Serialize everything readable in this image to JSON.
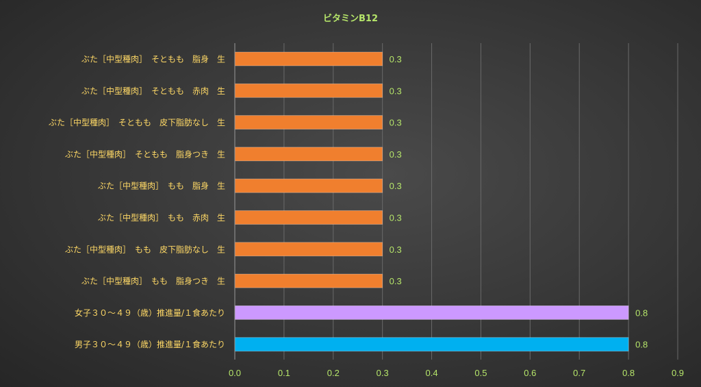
{
  "chart_data": {
    "type": "bar",
    "orientation": "horizontal",
    "title": "ビタミンB12",
    "categories": [
      "ぶた［中型種肉］　そともも　脂身　生",
      "ぶた［中型種肉］　そともも　赤肉　生",
      "ぶた［中型種肉］　そともも　皮下脂肪なし　生",
      "ぶた［中型種肉］　そともも　脂身つき　生",
      "ぶた［中型種肉］　もも　脂身　生",
      "ぶた［中型種肉］　もも　赤肉　生",
      "ぶた［中型種肉］　もも　皮下脂肪なし　生",
      "ぶた［中型種肉］　もも　脂身つき　生",
      "女子３０～４９（歳）推進量/１食あたり",
      "男子３０～４９（歳）推進量/１食あたり"
    ],
    "values": [
      0.3,
      0.3,
      0.3,
      0.3,
      0.3,
      0.3,
      0.3,
      0.3,
      0.8,
      0.8
    ],
    "value_labels": [
      "0.3",
      "0.3",
      "0.3",
      "0.3",
      "0.3",
      "0.3",
      "0.3",
      "0.3",
      "0.8",
      "0.8"
    ],
    "bar_colors": [
      "#f07f2e",
      "#f07f2e",
      "#f07f2e",
      "#f07f2e",
      "#f07f2e",
      "#f07f2e",
      "#f07f2e",
      "#f07f2e",
      "#cc99ff",
      "#00b0f0"
    ],
    "xlim": [
      0,
      0.9
    ],
    "x_ticks": [
      "0.0",
      "0.1",
      "0.2",
      "0.3",
      "0.4",
      "0.5",
      "0.6",
      "0.7",
      "0.8",
      "0.9"
    ],
    "grid": "vertical",
    "xlabel": "",
    "ylabel": "",
    "colors": {
      "title": "#b6e66a",
      "category_text": "#ffd966",
      "value_text": "#b6e66a",
      "tick_text": "#b6e66a",
      "grid": "#6a6a6a",
      "axis": "#9a9a9a"
    }
  }
}
